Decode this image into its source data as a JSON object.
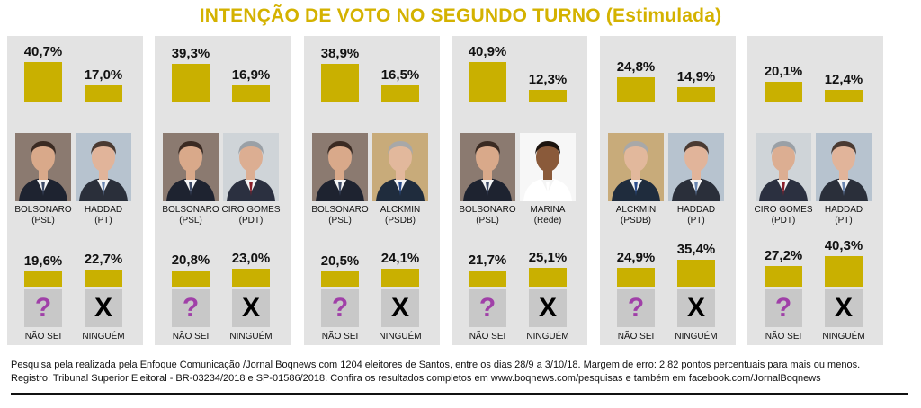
{
  "title": "INTENÇÃO DE VOTO NO SEGUNDO TURNO (Estimulada)",
  "colors": {
    "title": "#d4b200",
    "bar": "#c9b000",
    "panel": "#e3e3e3",
    "question_mark": "#a040a8"
  },
  "labels": {
    "nao_sei": "NÃO SEI",
    "ninguem": "NINGUÉM",
    "question_glyph": "?",
    "x_glyph": "X"
  },
  "chart_data": [
    {
      "type": "bar",
      "categories": [
        "BOLSONARO (PSL)",
        "HADDAD (PT)",
        "NÃO SEI",
        "NINGUÉM"
      ],
      "values": [
        40.7,
        17.0,
        19.6,
        22.7
      ],
      "value_labels": [
        "40,7%",
        "17,0%",
        "19,6%",
        "22,7%"
      ],
      "candidates": [
        {
          "name": "BOLSONARO",
          "party": "(PSL)",
          "photo": "bolsonaro"
        },
        {
          "name": "HADDAD",
          "party": "(PT)",
          "photo": "haddad"
        }
      ]
    },
    {
      "type": "bar",
      "categories": [
        "BOLSONARO (PSL)",
        "CIRO GOMES (PDT)",
        "NÃO SEI",
        "NINGUÉM"
      ],
      "values": [
        39.3,
        16.9,
        20.8,
        23.0
      ],
      "value_labels": [
        "39,3%",
        "16,9%",
        "20,8%",
        "23,0%"
      ],
      "candidates": [
        {
          "name": "BOLSONARO",
          "party": "(PSL)",
          "photo": "bolsonaro"
        },
        {
          "name": "CIRO GOMES",
          "party": "(PDT)",
          "photo": "ciro"
        }
      ]
    },
    {
      "type": "bar",
      "categories": [
        "BOLSONARO (PSL)",
        "ALCKMIN (PSDB)",
        "NÃO SEI",
        "NINGUÉM"
      ],
      "values": [
        38.9,
        16.5,
        20.5,
        24.1
      ],
      "value_labels": [
        "38,9%",
        "16,5%",
        "20,5%",
        "24,1%"
      ],
      "candidates": [
        {
          "name": "BOLSONARO",
          "party": "(PSL)",
          "photo": "bolsonaro"
        },
        {
          "name": "ALCKMIN",
          "party": "(PSDB)",
          "photo": "alckmin"
        }
      ]
    },
    {
      "type": "bar",
      "categories": [
        "BOLSONARO (PSL)",
        "MARINA (Rede)",
        "NÃO SEI",
        "NINGUÉM"
      ],
      "values": [
        40.9,
        12.3,
        21.7,
        25.1
      ],
      "value_labels": [
        "40,9%",
        "12,3%",
        "21,7%",
        "25,1%"
      ],
      "candidates": [
        {
          "name": "BOLSONARO",
          "party": "(PSL)",
          "photo": "bolsonaro"
        },
        {
          "name": "MARINA",
          "party": "(Rede)",
          "photo": "marina"
        }
      ]
    },
    {
      "type": "bar",
      "categories": [
        "ALCKMIN (PSDB)",
        "HADDAD (PT)",
        "NÃO SEI",
        "NINGUÉM"
      ],
      "values": [
        24.8,
        14.9,
        24.9,
        35.4
      ],
      "value_labels": [
        "24,8%",
        "14,9%",
        "24,9%",
        "35,4%"
      ],
      "candidates": [
        {
          "name": "ALCKMIN",
          "party": "(PSDB)",
          "photo": "alckmin"
        },
        {
          "name": "HADDAD",
          "party": "(PT)",
          "photo": "haddad"
        }
      ]
    },
    {
      "type": "bar",
      "categories": [
        "CIRO GOMES (PDT)",
        "HADDAD (PT)",
        "NÃO SEI",
        "NINGUÉM"
      ],
      "values": [
        20.1,
        12.4,
        27.2,
        40.3
      ],
      "value_labels": [
        "20,1%",
        "12,4%",
        "27,2%",
        "40,3%"
      ],
      "candidates": [
        {
          "name": "CIRO GOMES",
          "party": "(PDT)",
          "photo": "ciro"
        },
        {
          "name": "HADDAD",
          "party": "(PT)",
          "photo": "haddad"
        }
      ]
    }
  ],
  "footer": {
    "line1": "Pesquisa pela realizada pela Enfoque Comunicação /Jornal Boqnews com 1204 eleitores de Santos, entre os dias 28/9 a 3/10/18.  Margem de erro: 2,82 pontos percentuais para mais ou menos.",
    "line2": "Registro: Tribunal Superior Eleitoral - BR-03234/2018 e SP-01586/2018.  Confira os resultados completos em www.boqnews.com/pesquisas e também em facebook.com/JornalBoqnews"
  }
}
